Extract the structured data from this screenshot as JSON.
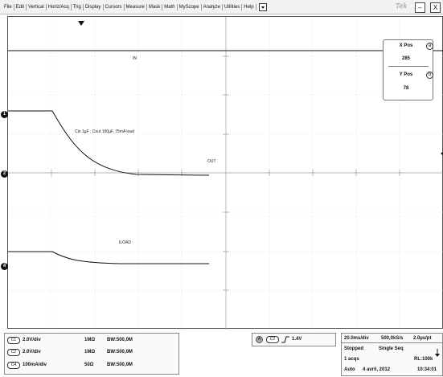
{
  "menu": {
    "items": [
      "File",
      "Edit",
      "Vertical",
      "Horiz/Acq",
      "Trig",
      "Display",
      "Cursors",
      "Measure",
      "Mask",
      "Math",
      "MyScope",
      "Analyze",
      "Utilities",
      "Help"
    ],
    "dropdown_icon": "dropdown-arrow-icon"
  },
  "window": {
    "brand": "Tek",
    "minimize_label": "–",
    "close_label": "X"
  },
  "channels_on_screen": {
    "markers": [
      {
        "id": "1",
        "label": "1"
      },
      {
        "id": "2",
        "label": "2"
      },
      {
        "id": "4",
        "label": "4"
      }
    ]
  },
  "waveform_labels": {
    "in": "IN",
    "condition": "Cin 1µF ; Cout 100µF, 75mA load",
    "out": "OUT",
    "iload": "ILOAD"
  },
  "cursors": {
    "x_pos_label": "X Pos",
    "x_badge": "a",
    "x_pos_value": "285",
    "y_pos_label": "Y Pos",
    "y_badge": "b",
    "y_pos_value": "78"
  },
  "channel_panel": [
    {
      "badge": "C1",
      "scale": "2.0V/div",
      "impedance": "1MΩ",
      "bandwidth": "BW:500,0M"
    },
    {
      "badge": "C2",
      "scale": "2.0V/div",
      "impedance": "1MΩ",
      "bandwidth": "BW:500,0M"
    },
    {
      "badge": "C4",
      "scale": "100mA/div",
      "impedance": "50Ω",
      "bandwidth": "BW:500,0M"
    }
  ],
  "trigger": {
    "badge": "A",
    "channel": "C2",
    "slope_icon": "rising-edge-icon",
    "level": "1.4V"
  },
  "acquisition": {
    "timebase": "20.0ms/div",
    "sample_rate": "500,0kS/s",
    "resolution": "2.0µs/pt",
    "state": "Stopped",
    "mode": "Single Seq",
    "acqs": "1 acqs",
    "record_length": "RL:100k",
    "trigger_mode": "Auto",
    "date": "4 avril, 2012",
    "time": "10:34:01"
  }
}
